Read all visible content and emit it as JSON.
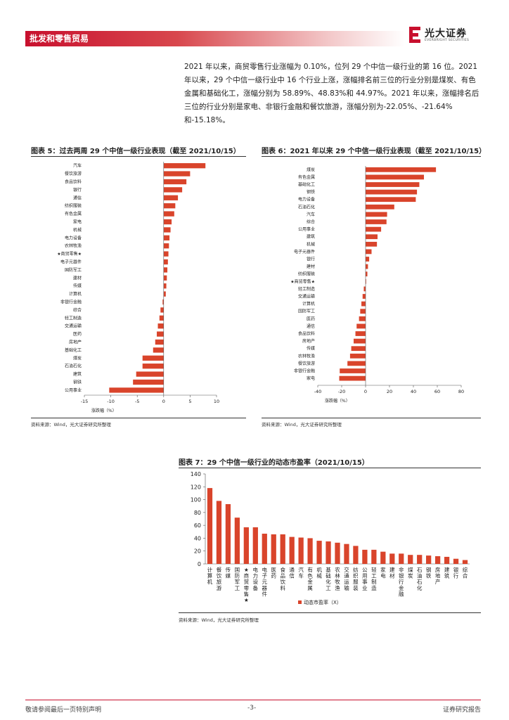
{
  "header": {
    "section": "批发和零售贸易",
    "logo_name": "光大证券",
    "logo_sub": "EVERBRIGHT SECURITIES"
  },
  "paragraph": "2021 年以来，商贸零售行业涨幅为 0.10%，位列 29 个中信一级行业的第 16 位。2021 年以来，29 个中信一级行业中 16 个行业上涨，涨幅排名前三位的行业分别是煤炭、有色金属和基础化工，涨幅分别为 58.89%、48.83%和 44.97%。2021 年以来，涨幅排名后三位的行业分别是家电、非银行金融和餐饮旅游，涨幅分别为-22.05%、-21.64%和-15.18%。",
  "colors": {
    "bar": "#d9442b",
    "brand": "#c8102e"
  },
  "fig5": {
    "title": "图表 5：过去两周 29 个中信一级行业表现（截至 2021/10/15）",
    "source": "资料来源：Wind，光大证券研究所整理",
    "chart_data": {
      "type": "bar",
      "orientation": "horizontal",
      "xlabel": "涨跌幅（%）",
      "xlim": [
        -15,
        10
      ],
      "ticks": [
        -15,
        -10,
        -5,
        0,
        5,
        10
      ],
      "categories": [
        "汽车",
        "餐饮旅游",
        "食品饮料",
        "银行",
        "通信",
        "纺织服装",
        "有色金属",
        "家电",
        "机械",
        "电力设备",
        "农林牧渔",
        "★商贸零售★",
        "电子元器件",
        "国防军工",
        "建材",
        "传媒",
        "计算机",
        "非银行金融",
        "综合",
        "轻工制造",
        "交通运输",
        "医药",
        "房地产",
        "基础化工",
        "煤炭",
        "石油石化",
        "建筑",
        "钢铁",
        "公用事业"
      ],
      "values": [
        7.9,
        5.0,
        4.3,
        3.5,
        2.7,
        2.2,
        2.0,
        1.5,
        1.3,
        1.1,
        1.0,
        0.9,
        0.8,
        0.7,
        0.6,
        0.5,
        0.4,
        -0.2,
        -0.6,
        -0.8,
        -1.1,
        -1.3,
        -1.6,
        -2.0,
        -4.0,
        -4.0,
        -5.2,
        -5.8,
        -10.3
      ]
    }
  },
  "fig6": {
    "title": "图表 6：2021 年以来 29 个中信一级行业表现（截至 2021/10/15）",
    "source": "资料来源：Wind，光大证券研究所整理",
    "chart_data": {
      "type": "bar",
      "orientation": "horizontal",
      "xlabel": "涨跌幅（%）",
      "xlim": [
        -40,
        80
      ],
      "ticks": [
        -40,
        -20,
        0,
        20,
        40,
        60,
        80
      ],
      "categories": [
        "煤炭",
        "有色金属",
        "基础化工",
        "钢铁",
        "电力设备",
        "石油石化",
        "汽车",
        "综合",
        "公用事业",
        "建筑",
        "机械",
        "电子元器件",
        "银行",
        "建材",
        "纺织服装",
        "★商贸零售★",
        "轻工制造",
        "交通运输",
        "计算机",
        "国防军工",
        "医药",
        "通信",
        "食品饮料",
        "房地产",
        "传媒",
        "农林牧渔",
        "餐饮旅游",
        "非银行金融",
        "家电"
      ],
      "values": [
        58.89,
        48.83,
        44.97,
        43.0,
        42.0,
        24.0,
        18.0,
        17.5,
        13.0,
        10.0,
        9.5,
        5.0,
        3.0,
        2.0,
        1.5,
        0.1,
        -1.5,
        -2.5,
        -3.5,
        -4.5,
        -5.5,
        -7.5,
        -8.5,
        -10.0,
        -12.0,
        -13.0,
        -15.18,
        -21.64,
        -22.05
      ]
    }
  },
  "fig7": {
    "title": "图表 7：29 个中信一级行业的动态市盈率（2021/10/15）",
    "source": "资料来源：Wind，光大证券研究所整理",
    "chart_data": {
      "type": "bar",
      "ylim": [
        0,
        140
      ],
      "ticks": [
        0,
        20,
        40,
        60,
        80,
        100,
        120,
        140
      ],
      "legend": "动态市盈率（X）",
      "legend_position": "bottom",
      "categories": [
        "计算机",
        "餐饮旅游",
        "传媒",
        "国防军工",
        "★商贸零售★",
        "电力设备",
        "电子元器件",
        "医药",
        "食品饮料",
        "通信",
        "汽车",
        "有色金属",
        "机械",
        "基础化工",
        "农林牧渔",
        "交通运输",
        "纺织服装",
        "公用事业",
        "轻工制造",
        "家电",
        "建材",
        "非银行金融",
        "煤炭",
        "石油石化",
        "钢铁",
        "房地产",
        "建筑",
        "银行",
        "综合"
      ],
      "values": [
        118,
        98,
        93,
        72,
        57,
        57,
        47,
        46,
        46,
        42,
        41,
        40,
        36,
        35,
        33,
        31,
        28,
        22,
        22,
        19,
        16,
        16,
        14,
        14,
        13,
        12,
        11,
        8,
        6
      ]
    }
  },
  "footer": {
    "left": "敬请参阅最后一页特别声明",
    "center": "-3-",
    "right": "证券研究报告"
  }
}
